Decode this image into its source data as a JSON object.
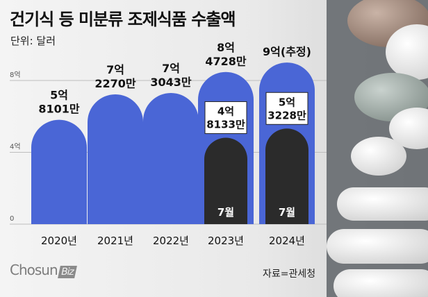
{
  "title": "건기식 등 미분류 조제식품 수출액",
  "unit": "단위: 달러",
  "source": "자료=관세청",
  "logo": {
    "main": "Chosun",
    "sub": "Biz"
  },
  "colors": {
    "annual": "#4a66d6",
    "july": "#2b2b2b",
    "text": "#111111"
  },
  "chart_data": {
    "type": "bar",
    "categories": [
      "2020년",
      "2021년",
      "2022년",
      "2023년",
      "2024년"
    ],
    "series": [
      {
        "values": [
          5.8101,
          7.227,
          7.3043,
          8.4728,
          9.0
        ]
      },
      {
        "values": [
          null,
          null,
          null,
          4.8133,
          5.3228
        ]
      }
    ],
    "ylim": [
      0,
      9
    ],
    "yticks": [
      {
        "v": 0,
        "label": "0"
      },
      {
        "v": 4,
        "label": "4억"
      },
      {
        "v": 8,
        "label": "8억"
      }
    ],
    "annual_labels": [
      [
        "5억",
        "8101만"
      ],
      [
        "7억",
        "2270만"
      ],
      [
        "7억",
        "3043만"
      ],
      [
        "8억",
        "4728만"
      ],
      [
        "9억(추정)",
        ""
      ]
    ],
    "july_labels": [
      null,
      null,
      null,
      [
        "4억",
        "8133만"
      ],
      [
        "5억",
        "3228만"
      ]
    ],
    "july_tag": "7월"
  }
}
